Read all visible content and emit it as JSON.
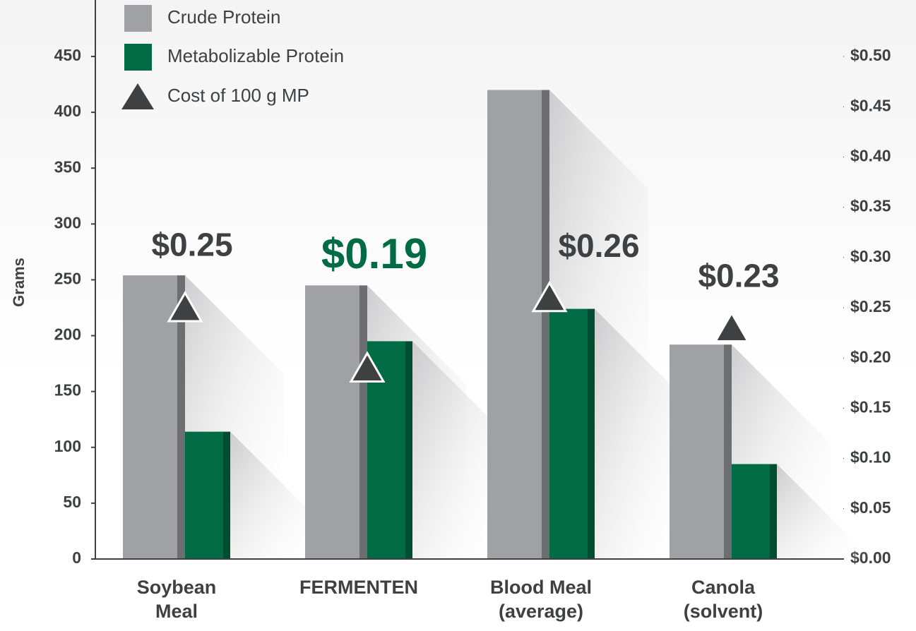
{
  "chart_data": {
    "type": "bar",
    "y_label": "Grams",
    "categories": [
      "Soybean Meal",
      "FERMENTEN",
      "Blood Meal (average)",
      "Canola (solvent)"
    ],
    "series": [
      {
        "name": "Crude Protein",
        "color": "#a0a1a5",
        "side_color": "#6d6e71",
        "values": [
          254,
          245,
          420,
          192
        ]
      },
      {
        "name": "Metabolizable Protein",
        "color": "#006b45",
        "side_color": "#004d31",
        "values": [
          114,
          195,
          224,
          85
        ]
      },
      {
        "name": "Cost of 100 g MP",
        "type": "scatter",
        "marker": "triangle",
        "axis": "y2",
        "color": "#3f4042",
        "values": [
          0.25,
          0.19,
          0.26,
          0.23
        ],
        "value_labels": [
          "$0.25",
          "$0.19",
          "$0.26",
          "$0.23"
        ],
        "label_colors": [
          "#3f4042",
          "#006b45",
          "#3f4042",
          "#3f4042"
        ]
      }
    ],
    "ylim": [
      0,
      450
    ],
    "yticks": [
      0,
      50,
      100,
      150,
      200,
      250,
      300,
      350,
      400,
      450
    ],
    "y2lim": [
      0,
      0.5
    ],
    "y2ticks": [
      {
        "value": 0,
        "label": "$0.00"
      },
      {
        "value": 0.05,
        "label": "$0.05"
      },
      {
        "value": 0.1,
        "label": "$0.10"
      },
      {
        "value": 0.15,
        "label": "$0.15"
      },
      {
        "value": 0.2,
        "label": "$0.20"
      },
      {
        "value": 0.25,
        "label": "$0.25"
      },
      {
        "value": 0.3,
        "label": "$0.30"
      },
      {
        "value": 0.35,
        "label": "$0.35"
      },
      {
        "value": 0.4,
        "label": "$0.40"
      },
      {
        "value": 0.45,
        "label": "$0.45"
      },
      {
        "value": 0.5,
        "label": "$0.50"
      }
    ],
    "legend": "upper left",
    "grid": false
  }
}
